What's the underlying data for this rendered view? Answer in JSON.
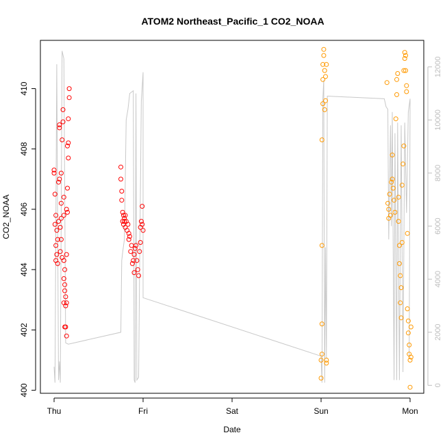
{
  "chart_data": {
    "type": "scatter",
    "title": "ATOM2 Northeast_Pacific_1 CO2_NOAA",
    "xlabel": "Date",
    "ylabel": "CO2_NOAA",
    "x_ticks": [
      "Thu",
      "Fri",
      "Sat",
      "Sun",
      "Mon"
    ],
    "x_range_days": [
      0,
      4.0
    ],
    "y_ticks": [
      400,
      402,
      404,
      406,
      408,
      410
    ],
    "y_range": [
      399.9,
      411.6
    ],
    "y2_ticks": [
      0,
      2000,
      4000,
      6000,
      8000,
      10000,
      12000
    ],
    "y2_range": [
      -300,
      13000
    ],
    "grid": false,
    "legend": "none",
    "colors": {
      "series_red": "#ff0000",
      "series_orange": "#ff9900",
      "altitude_line": "#c8c8c8",
      "right_axis": "#bdbdbd"
    },
    "series": [
      {
        "color": "red",
        "marker": "circle-open",
        "points": [
          [
            0.0,
            407.3
          ],
          [
            0.0,
            407.2
          ],
          [
            0.01,
            406.5
          ],
          [
            0.01,
            405.5
          ],
          [
            0.02,
            405.8
          ],
          [
            0.02,
            404.8
          ],
          [
            0.02,
            404.3
          ],
          [
            0.03,
            404.5
          ],
          [
            0.03,
            405.3
          ],
          [
            0.04,
            404.2
          ],
          [
            0.04,
            405.0
          ],
          [
            0.05,
            405.6
          ],
          [
            0.05,
            406.9
          ],
          [
            0.06,
            407.0
          ],
          [
            0.06,
            408.8
          ],
          [
            0.06,
            408.7
          ],
          [
            0.07,
            405.4
          ],
          [
            0.07,
            404.6
          ],
          [
            0.08,
            406.2
          ],
          [
            0.08,
            407.2
          ],
          [
            0.08,
            405.7
          ],
          [
            0.08,
            405.0
          ],
          [
            0.09,
            404.4
          ],
          [
            0.09,
            408.3
          ],
          [
            0.1,
            408.9
          ],
          [
            0.1,
            409.3
          ],
          [
            0.11,
            406.4
          ],
          [
            0.11,
            405.8
          ],
          [
            0.11,
            404.3
          ],
          [
            0.11,
            403.7
          ],
          [
            0.11,
            402.9
          ],
          [
            0.12,
            402.1
          ],
          [
            0.12,
            403.3
          ],
          [
            0.12,
            404.0
          ],
          [
            0.12,
            403.5
          ],
          [
            0.13,
            403.1
          ],
          [
            0.13,
            402.8
          ],
          [
            0.13,
            402.1
          ],
          [
            0.14,
            401.8
          ],
          [
            0.14,
            402.9
          ],
          [
            0.14,
            404.5
          ],
          [
            0.14,
            406.0
          ],
          [
            0.15,
            406.7
          ],
          [
            0.15,
            405.9
          ],
          [
            0.15,
            408.1
          ],
          [
            0.16,
            408.2
          ],
          [
            0.16,
            407.7
          ],
          [
            0.16,
            409.0
          ],
          [
            0.17,
            410.0
          ],
          [
            0.17,
            409.7
          ],
          [
            0.75,
            407.4
          ],
          [
            0.75,
            407.0
          ],
          [
            0.76,
            406.6
          ],
          [
            0.76,
            406.3
          ],
          [
            0.77,
            405.9
          ],
          [
            0.77,
            405.6
          ],
          [
            0.78,
            405.8
          ],
          [
            0.78,
            405.5
          ],
          [
            0.79,
            405.6
          ],
          [
            0.79,
            405.7
          ],
          [
            0.8,
            405.4
          ],
          [
            0.8,
            405.8
          ],
          [
            0.81,
            405.6
          ],
          [
            0.82,
            405.3
          ],
          [
            0.83,
            405.5
          ],
          [
            0.84,
            405.2
          ],
          [
            0.84,
            405.0
          ],
          [
            0.85,
            405.1
          ],
          [
            0.86,
            404.6
          ],
          [
            0.87,
            404.8
          ],
          [
            0.88,
            404.2
          ],
          [
            0.89,
            404.3
          ],
          [
            0.9,
            403.9
          ],
          [
            0.9,
            404.5
          ],
          [
            0.91,
            404.7
          ],
          [
            0.92,
            404.8
          ],
          [
            0.93,
            404.3
          ],
          [
            0.94,
            404.0
          ],
          [
            0.95,
            403.8
          ],
          [
            0.96,
            404.6
          ],
          [
            0.97,
            404.9
          ],
          [
            0.97,
            405.4
          ],
          [
            0.98,
            405.6
          ],
          [
            0.99,
            405.5
          ],
          [
            0.99,
            406.1
          ],
          [
            1.0,
            405.3
          ]
        ]
      },
      {
        "color": "orange",
        "marker": "circle-open",
        "points": [
          [
            3.0,
            400.4
          ],
          [
            3.0,
            401.0
          ],
          [
            3.01,
            401.2
          ],
          [
            3.01,
            402.2
          ],
          [
            3.01,
            404.8
          ],
          [
            3.01,
            408.3
          ],
          [
            3.02,
            409.5
          ],
          [
            3.02,
            410.8
          ],
          [
            3.02,
            410.3
          ],
          [
            3.03,
            411.1
          ],
          [
            3.03,
            411.3
          ],
          [
            3.04,
            410.6
          ],
          [
            3.04,
            409.3
          ],
          [
            3.05,
            409.6
          ],
          [
            3.05,
            410.4
          ],
          [
            3.06,
            410.8
          ],
          [
            3.06,
            401.0
          ],
          [
            3.06,
            400.9
          ],
          [
            3.74,
            410.2
          ],
          [
            3.75,
            406.2
          ],
          [
            3.76,
            406.0
          ],
          [
            3.76,
            405.7
          ],
          [
            3.77,
            406.5
          ],
          [
            3.78,
            405.8
          ],
          [
            3.79,
            406.9
          ],
          [
            3.8,
            407.0
          ],
          [
            3.8,
            407.8
          ],
          [
            3.81,
            406.7
          ],
          [
            3.82,
            406.3
          ],
          [
            3.83,
            405.9
          ],
          [
            3.84,
            409.0
          ],
          [
            3.85,
            409.8
          ],
          [
            3.85,
            410.3
          ],
          [
            3.86,
            410.5
          ],
          [
            3.87,
            406.4
          ],
          [
            3.87,
            405.6
          ],
          [
            3.88,
            404.8
          ],
          [
            3.88,
            404.2
          ],
          [
            3.89,
            403.8
          ],
          [
            3.89,
            402.9
          ],
          [
            3.9,
            402.4
          ],
          [
            3.9,
            403.4
          ],
          [
            3.91,
            404.9
          ],
          [
            3.91,
            406.8
          ],
          [
            3.92,
            407.5
          ],
          [
            3.93,
            408.1
          ],
          [
            3.93,
            410.6
          ],
          [
            3.94,
            411.0
          ],
          [
            3.94,
            411.2
          ],
          [
            3.95,
            411.1
          ],
          [
            3.95,
            410.6
          ],
          [
            3.96,
            410.1
          ],
          [
            3.96,
            409.9
          ],
          [
            3.97,
            405.2
          ],
          [
            3.97,
            402.7
          ],
          [
            3.98,
            402.3
          ],
          [
            3.98,
            401.9
          ],
          [
            3.99,
            401.5
          ],
          [
            3.99,
            401.2
          ],
          [
            4.0,
            400.1
          ],
          [
            4.0,
            401.0
          ],
          [
            4.01,
            401.1
          ],
          [
            4.01,
            402.1
          ]
        ]
      }
    ],
    "altitude_line": {
      "axis": "right",
      "points": [
        [
          0.0,
          700
        ],
        [
          0.01,
          100
        ],
        [
          0.03,
          12100
        ],
        [
          0.05,
          200
        ],
        [
          0.06,
          900
        ],
        [
          0.07,
          100
        ],
        [
          0.09,
          12600
        ],
        [
          0.11,
          12300
        ],
        [
          0.13,
          1600
        ],
        [
          0.16,
          1550
        ],
        [
          0.75,
          2000
        ],
        [
          0.76,
          4700
        ],
        [
          0.77,
          5000
        ],
        [
          0.79,
          5500
        ],
        [
          0.81,
          10000
        ],
        [
          0.82,
          10200
        ],
        [
          0.83,
          10400
        ],
        [
          0.85,
          11000
        ],
        [
          0.89,
          11100
        ],
        [
          0.9,
          200
        ],
        [
          0.91,
          100
        ],
        [
          0.92,
          11000
        ],
        [
          0.93,
          200
        ],
        [
          0.95,
          300
        ],
        [
          0.96,
          4000
        ],
        [
          0.98,
          10700
        ],
        [
          1.0,
          11800
        ],
        [
          1.0,
          3300
        ],
        [
          3.0,
          1100
        ],
        [
          3.01,
          100
        ],
        [
          3.02,
          10800
        ],
        [
          3.03,
          11500
        ],
        [
          3.04,
          100
        ],
        [
          3.05,
          5200
        ],
        [
          3.06,
          1000
        ],
        [
          3.07,
          10900
        ],
        [
          3.71,
          10800
        ],
        [
          3.73,
          10500
        ],
        [
          3.75,
          10400
        ],
        [
          3.76,
          5500
        ],
        [
          3.78,
          9800
        ],
        [
          3.79,
          6000
        ],
        [
          3.8,
          10300
        ],
        [
          3.82,
          200
        ],
        [
          3.83,
          9500
        ],
        [
          3.85,
          200
        ],
        [
          3.86,
          9900
        ],
        [
          3.88,
          200
        ],
        [
          3.9,
          9800
        ],
        [
          3.92,
          500
        ],
        [
          3.94,
          9900
        ],
        [
          3.96,
          6500
        ],
        [
          3.98,
          10300
        ],
        [
          4.0,
          10800
        ],
        [
          3.99,
          1000
        ]
      ]
    }
  }
}
